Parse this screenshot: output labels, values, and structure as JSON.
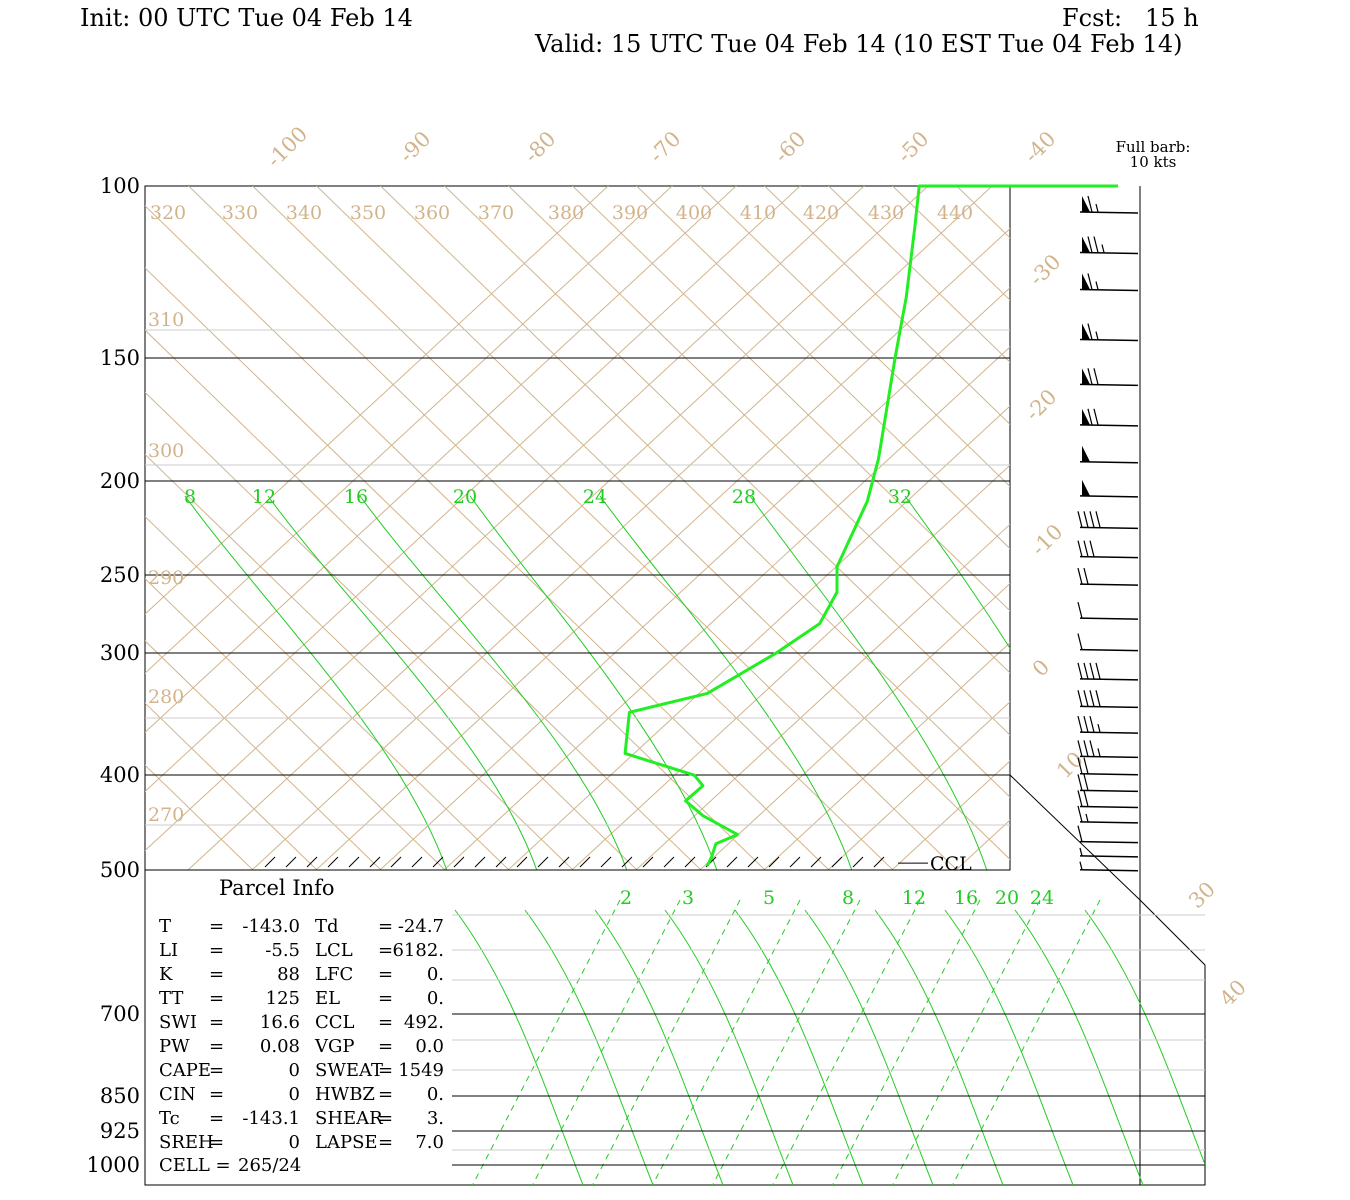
{
  "header": {
    "init": "Init: 00 UTC Tue 04 Feb 14",
    "fcst": "Fcst:   15 h",
    "valid": "Valid: 15 UTC Tue 04 Feb 14 (10 EST Tue 04 Feb 14)"
  },
  "colors": {
    "background": "#ffffff",
    "axes": "#000000",
    "temperature_lines": "#d2b48c",
    "mixing_ratio_lines": "#22cc22",
    "sounding_trace": "#22ee22"
  },
  "chart_data": {
    "type": "line",
    "title": "",
    "y_axis": {
      "label": "",
      "scale": "log-pressure",
      "ticks": [
        "100",
        "150",
        "200",
        "250",
        "300",
        "400",
        "500",
        "700",
        "850",
        "925",
        "1000"
      ]
    },
    "upper_panel": {
      "temperature_labels": [
        "-100",
        "-90",
        "-80",
        "-70",
        "-60",
        "-50",
        "-40",
        "-30",
        "-20",
        "-10",
        "0",
        "10",
        "30",
        "40"
      ],
      "theta_labels_top": [
        "320",
        "330",
        "340",
        "350",
        "360",
        "370",
        "380",
        "390",
        "400",
        "410",
        "420",
        "430",
        "440"
      ],
      "theta_labels_left": [
        "310",
        "300",
        "290",
        "280",
        "270"
      ],
      "mixing_ratio_labels": [
        "8",
        "12",
        "16",
        "20",
        "24",
        "28",
        "32"
      ]
    },
    "lower_panel": {
      "mixing_ratio_labels": [
        "2",
        "3",
        "5",
        "8",
        "12",
        "16",
        "20",
        "24"
      ]
    },
    "sounding": {
      "name": "",
      "points": [
        {
          "p": 100,
          "x": 0.895
        },
        {
          "p": 110,
          "x": 0.89
        },
        {
          "p": 130,
          "x": 0.88
        },
        {
          "p": 150,
          "x": 0.867
        },
        {
          "p": 170,
          "x": 0.857
        },
        {
          "p": 190,
          "x": 0.848
        },
        {
          "p": 210,
          "x": 0.835
        },
        {
          "p": 245,
          "x": 0.8
        },
        {
          "p": 260,
          "x": 0.8
        },
        {
          "p": 280,
          "x": 0.78
        },
        {
          "p": 300,
          "x": 0.73
        },
        {
          "p": 330,
          "x": 0.65
        },
        {
          "p": 345,
          "x": 0.56
        },
        {
          "p": 380,
          "x": 0.555
        },
        {
          "p": 400,
          "x": 0.635
        },
        {
          "p": 410,
          "x": 0.645
        },
        {
          "p": 425,
          "x": 0.625
        },
        {
          "p": 440,
          "x": 0.645
        },
        {
          "p": 460,
          "x": 0.685
        },
        {
          "p": 470,
          "x": 0.66
        },
        {
          "p": 485,
          "x": 0.655
        },
        {
          "p": 495,
          "x": 0.65
        }
      ]
    },
    "wind_barbs": {
      "legend_line1": "Full barb:",
      "legend_line2": "10 kts",
      "levels": [
        {
          "p": 100,
          "kts": 65
        },
        {
          "p": 110,
          "kts": 75
        },
        {
          "p": 120,
          "kts": 65
        },
        {
          "p": 135,
          "kts": 65
        },
        {
          "p": 150,
          "kts": 70
        },
        {
          "p": 165,
          "kts": 70
        },
        {
          "p": 180,
          "kts": 50
        },
        {
          "p": 195,
          "kts": 50
        },
        {
          "p": 210,
          "kts": 40
        },
        {
          "p": 225,
          "kts": 30
        },
        {
          "p": 240,
          "kts": 20
        },
        {
          "p": 260,
          "kts": 10
        },
        {
          "p": 280,
          "kts": 10
        },
        {
          "p": 300,
          "kts": 40
        },
        {
          "p": 320,
          "kts": 40
        },
        {
          "p": 340,
          "kts": 35
        },
        {
          "p": 360,
          "kts": 35
        },
        {
          "p": 375,
          "kts": 20
        },
        {
          "p": 390,
          "kts": 20
        },
        {
          "p": 405,
          "kts": 20
        },
        {
          "p": 420,
          "kts": 15
        },
        {
          "p": 440,
          "kts": 10
        },
        {
          "p": 455,
          "kts": 5
        },
        {
          "p": 470,
          "kts": 5
        }
      ]
    },
    "ccl_label": "CCL",
    "ccl_pressure": 492
  },
  "parcel_info": {
    "title": "Parcel  Info",
    "rows": [
      {
        "l1": "T",
        "v1": "-143.0",
        "l2": "Td",
        "v2": "-24.7"
      },
      {
        "l1": "LI",
        "v1": "-5.5",
        "l2": "LCL",
        "v2": "6182."
      },
      {
        "l1": "K",
        "v1": "88",
        "l2": "LFC",
        "v2": "0."
      },
      {
        "l1": "TT",
        "v1": "125",
        "l2": "EL",
        "v2": "0."
      },
      {
        "l1": "SWI",
        "v1": "16.6",
        "l2": "CCL",
        "v2": "492."
      },
      {
        "l1": "PW",
        "v1": "0.08",
        "l2": "VGP",
        "v2": "0.0"
      },
      {
        "l1": "CAPE",
        "v1": "0",
        "l2": "SWEAT",
        "v2": "1549"
      },
      {
        "l1": "CIN",
        "v1": "0",
        "l2": "HWBZ",
        "v2": "0."
      },
      {
        "l1": "Tc",
        "v1": "-143.1",
        "l2": "SHEAR",
        "v2": "3."
      },
      {
        "l1": "SREH",
        "v1": "0",
        "l2": "LAPSE",
        "v2": "7.0"
      }
    ],
    "cell_label": "CELL",
    "cell_value": "265/24"
  }
}
